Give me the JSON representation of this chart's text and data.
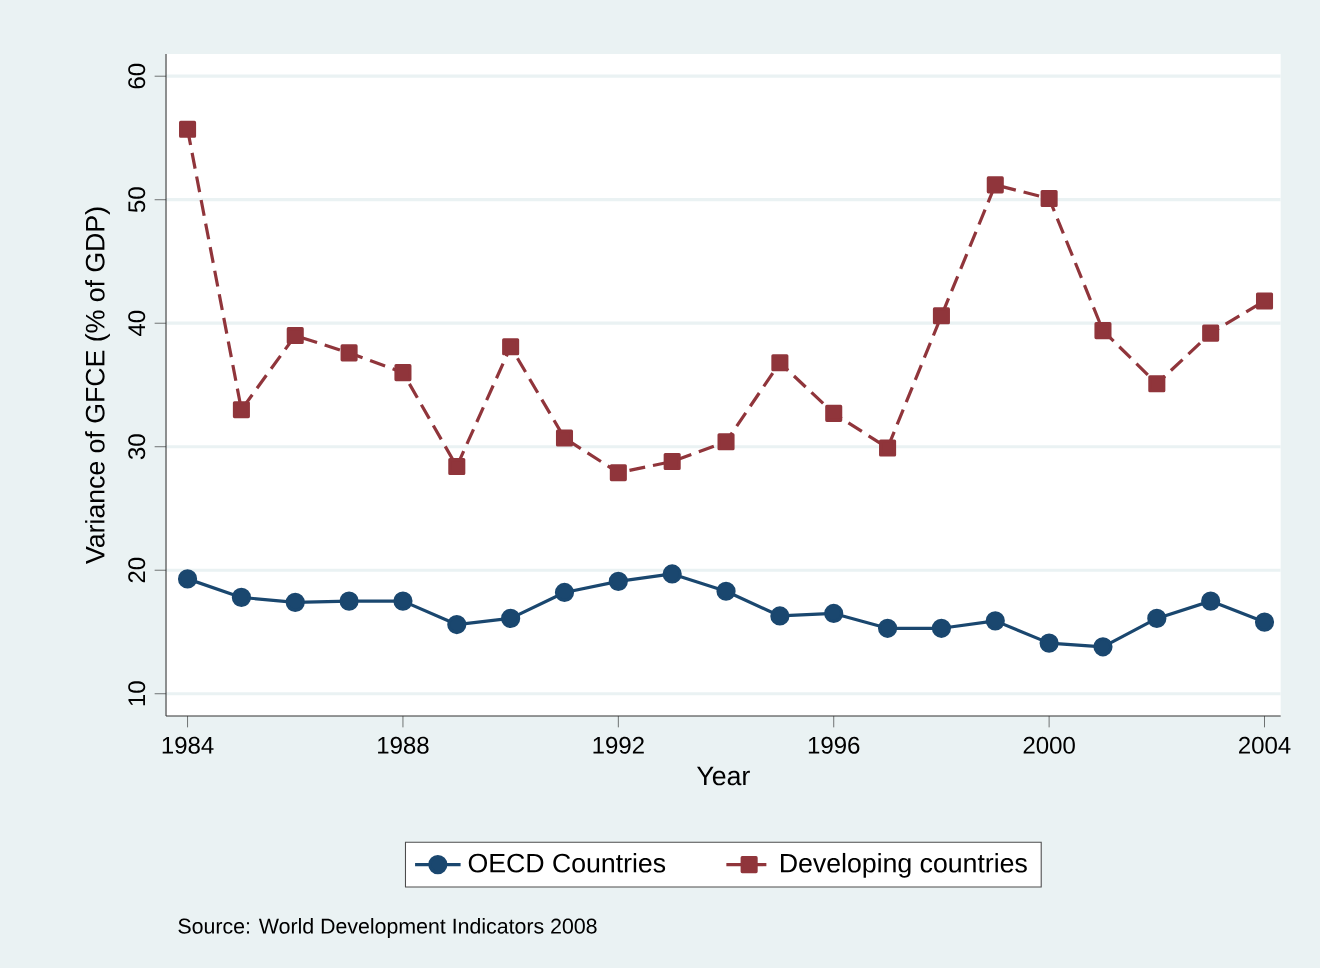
{
  "chart_data": {
    "type": "line",
    "xlabel": "Year",
    "ylabel": "Variance of GFCE (% of GDP)",
    "x": [
      1984,
      1985,
      1986,
      1987,
      1988,
      1989,
      1990,
      1991,
      1992,
      1993,
      1994,
      1995,
      1996,
      1997,
      1998,
      1999,
      2000,
      2001,
      2002,
      2003,
      2004
    ],
    "series": [
      {
        "name": "OECD Countries",
        "color": "#1a476f",
        "marker": "circle",
        "line_style": "solid",
        "values": [
          19.3,
          17.8,
          17.4,
          17.5,
          17.5,
          15.6,
          16.1,
          18.2,
          19.1,
          19.7,
          18.3,
          16.3,
          16.5,
          15.3,
          15.3,
          15.9,
          14.1,
          13.8,
          16.1,
          17.5,
          15.8
        ]
      },
      {
        "name": "Developing countries",
        "color": "#90353b",
        "marker": "square",
        "line_style": "dashed",
        "values": [
          55.7,
          33.0,
          39.0,
          37.6,
          36.0,
          28.4,
          38.1,
          30.7,
          27.9,
          28.8,
          30.4,
          36.8,
          32.7,
          29.9,
          40.6,
          51.2,
          50.1,
          39.4,
          35.1,
          39.2,
          41.8
        ]
      }
    ],
    "xlim": [
      1983.6,
      2004.3
    ],
    "ylim": [
      8.2,
      61.8
    ],
    "xticks": [
      1984,
      1988,
      1992,
      1996,
      2000,
      2004
    ],
    "yticks": [
      10,
      20,
      30,
      40,
      50,
      60
    ],
    "grid": "y",
    "legend": "bottom",
    "annotations": [
      "Source: World Development Indicators 2008"
    ]
  }
}
